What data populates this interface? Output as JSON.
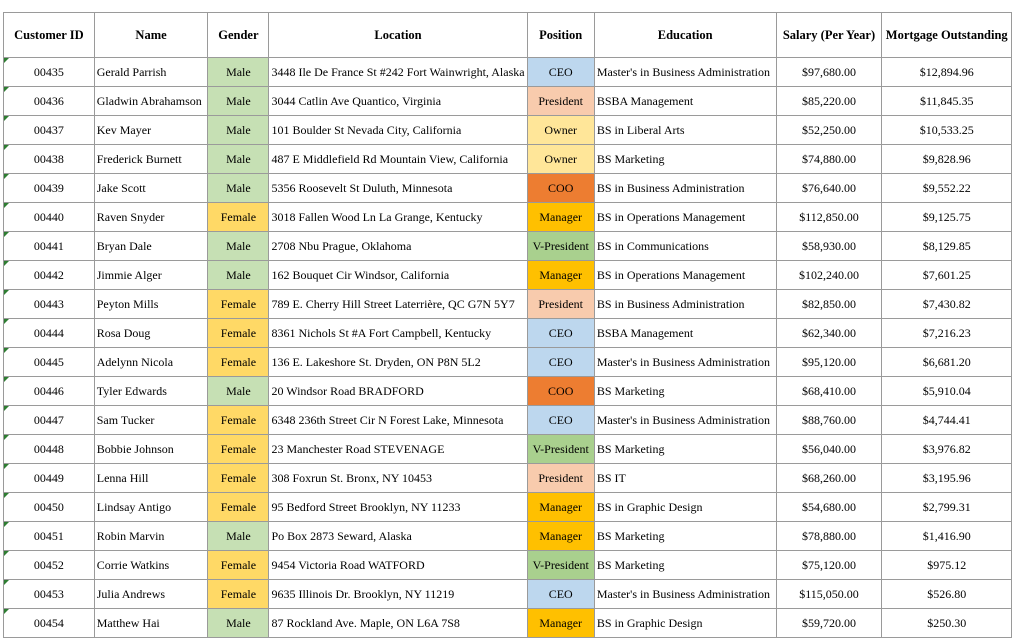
{
  "headers": [
    "Customer ID",
    "Name",
    "Gender",
    "Location",
    "Position",
    "Education",
    "Salary (Per Year)",
    "Mortgage Outstanding"
  ],
  "colors": {
    "male": "#c6e0b4",
    "female": "#ffd966",
    "CEO": "#bdd7ee",
    "President": "#f8cbad",
    "Owner": "#ffe699",
    "COO": "#ed7d31",
    "Manager": "#ffc000",
    "V-President": "#a9d08e"
  },
  "rows": [
    {
      "id": "00435",
      "name": "Gerald Parrish",
      "gender": "Male",
      "location": "3448 Ile De France St #242 Fort Wainwright, Alaska",
      "position": "CEO",
      "education": "Master's in Business Administration",
      "salary": "$97,680.00",
      "mortgage": "$12,894.96"
    },
    {
      "id": "00436",
      "name": "Gladwin Abrahamson",
      "gender": "Male",
      "location": "3044 Catlin Ave Quantico, Virginia",
      "position": "President",
      "education": "BSBA Management",
      "salary": "$85,220.00",
      "mortgage": "$11,845.35"
    },
    {
      "id": "00437",
      "name": "Kev Mayer",
      "gender": "Male",
      "location": "101 Boulder St Nevada City, California",
      "position": "Owner",
      "education": "BS in Liberal Arts",
      "salary": "$52,250.00",
      "mortgage": "$10,533.25"
    },
    {
      "id": "00438",
      "name": "Frederick Burnett",
      "gender": "Male",
      "location": "487 E Middlefield Rd Mountain View, California",
      "position": "Owner",
      "education": "BS Marketing",
      "salary": "$74,880.00",
      "mortgage": "$9,828.96"
    },
    {
      "id": "00439",
      "name": "Jake Scott",
      "gender": "Male",
      "location": "5356 Roosevelt St Duluth, Minnesota",
      "position": "COO",
      "education": "BS in Business Administration",
      "salary": "$76,640.00",
      "mortgage": "$9,552.22"
    },
    {
      "id": "00440",
      "name": "Raven Snyder",
      "gender": "Female",
      "location": "3018 Fallen Wood Ln La Grange, Kentucky",
      "position": "Manager",
      "education": "BS in Operations Management",
      "salary": "$112,850.00",
      "mortgage": "$9,125.75"
    },
    {
      "id": "00441",
      "name": "Bryan Dale",
      "gender": "Male",
      "location": "2708 Nbu Prague, Oklahoma",
      "position": "V-President",
      "education": "BS in Communications",
      "salary": "$58,930.00",
      "mortgage": "$8,129.85"
    },
    {
      "id": "00442",
      "name": "Jimmie Alger",
      "gender": "Male",
      "location": "162 Bouquet Cir Windsor, California",
      "position": "Manager",
      "education": "BS in Operations Management",
      "salary": "$102,240.00",
      "mortgage": "$7,601.25"
    },
    {
      "id": "00443",
      "name": "Peyton Mills",
      "gender": "Female",
      "location": "789 E. Cherry Hill Street Laterrière, QC G7N 5Y7",
      "position": "President",
      "education": "BS in Business Administration",
      "salary": "$82,850.00",
      "mortgage": "$7,430.82"
    },
    {
      "id": "00444",
      "name": "Rosa Doug",
      "gender": "Female",
      "location": "8361 Nichols St #A Fort Campbell, Kentucky",
      "position": "CEO",
      "education": "BSBA Management",
      "salary": "$62,340.00",
      "mortgage": "$7,216.23"
    },
    {
      "id": "00445",
      "name": "Adelynn Nicola",
      "gender": "Female",
      "location": "136 E. Lakeshore St. Dryden, ON P8N 5L2",
      "position": "CEO",
      "education": "Master's in Business Administration",
      "salary": "$95,120.00",
      "mortgage": "$6,681.20"
    },
    {
      "id": "00446",
      "name": "Tyler Edwards",
      "gender": "Male",
      "location": "20 Windsor Road BRADFORD",
      "position": "COO",
      "education": "BS Marketing",
      "salary": "$68,410.00",
      "mortgage": "$5,910.04"
    },
    {
      "id": "00447",
      "name": "Sam Tucker",
      "gender": "Female",
      "location": "6348 236th Street Cir N Forest Lake, Minnesota",
      "position": "CEO",
      "education": "Master's in Business Administration",
      "salary": "$88,760.00",
      "mortgage": "$4,744.41"
    },
    {
      "id": "00448",
      "name": "Bobbie Johnson",
      "gender": "Female",
      "location": "23 Manchester Road STEVENAGE",
      "position": "V-President",
      "education": "BS Marketing",
      "salary": "$56,040.00",
      "mortgage": "$3,976.82"
    },
    {
      "id": "00449",
      "name": "Lenna Hill",
      "gender": "Female",
      "location": "308 Foxrun St. Bronx, NY 10453",
      "position": "President",
      "education": "BS IT",
      "salary": "$68,260.00",
      "mortgage": "$3,195.96"
    },
    {
      "id": "00450",
      "name": "Lindsay Antigo",
      "gender": "Female",
      "location": "95 Bedford Street Brooklyn, NY 11233",
      "position": "Manager",
      "education": "BS in Graphic Design",
      "salary": "$54,680.00",
      "mortgage": "$2,799.31"
    },
    {
      "id": "00451",
      "name": "Robin Marvin",
      "gender": "Male",
      "location": "Po Box 2873 Seward, Alaska",
      "position": "Manager",
      "education": "BS Marketing",
      "salary": "$78,880.00",
      "mortgage": "$1,416.90"
    },
    {
      "id": "00452",
      "name": "Corrie Watkins",
      "gender": "Female",
      "location": "9454 Victoria Road WATFORD",
      "position": "V-President",
      "education": "BS Marketing",
      "salary": "$75,120.00",
      "mortgage": "$975.12"
    },
    {
      "id": "00453",
      "name": "Julia Andrews",
      "gender": "Female",
      "location": "9635 Illinois Dr. Brooklyn, NY 11219",
      "position": "CEO",
      "education": "Master's in Business Administration",
      "salary": "$115,050.00",
      "mortgage": "$526.80"
    },
    {
      "id": "00454",
      "name": "Matthew Hai",
      "gender": "Male",
      "location": "87 Rockland Ave. Maple, ON L6A 7S8",
      "position": "Manager",
      "education": "BS in Graphic Design",
      "salary": "$59,720.00",
      "mortgage": "$250.30"
    }
  ]
}
